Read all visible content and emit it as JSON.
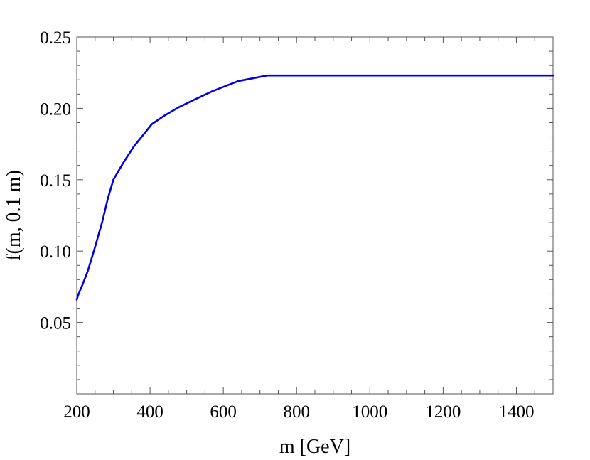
{
  "chart_data": {
    "type": "line",
    "xlabel": "m [GeV]",
    "ylabel": "f(m, 0.1 m)",
    "xlim": [
      200,
      1500
    ],
    "ylim": [
      0,
      0.25
    ],
    "x_ticks": [
      200,
      400,
      600,
      800,
      1000,
      1200,
      1400
    ],
    "x_tick_labels": [
      "200",
      "400",
      "600",
      "800",
      "1000",
      "1200",
      "1400"
    ],
    "y_ticks": [
      0.05,
      0.1,
      0.15,
      0.2,
      0.25
    ],
    "y_tick_labels": [
      "0.05",
      "0.10",
      "0.15",
      "0.20",
      "0.25"
    ],
    "grid": false,
    "series": [
      {
        "color": "#0000e6",
        "x": [
          200,
          205,
          215,
          230,
          250,
          270,
          285,
          300,
          325,
          355,
          380,
          405,
          440,
          480,
          520,
          570,
          640,
          720,
          800,
          1000,
          1200,
          1500
        ],
        "y": [
          0.066,
          0.07,
          0.076,
          0.086,
          0.103,
          0.121,
          0.137,
          0.15,
          0.161,
          0.173,
          0.181,
          0.189,
          0.195,
          0.201,
          0.206,
          0.212,
          0.219,
          0.223,
          0.223,
          0.223,
          0.223,
          0.223
        ]
      }
    ]
  }
}
